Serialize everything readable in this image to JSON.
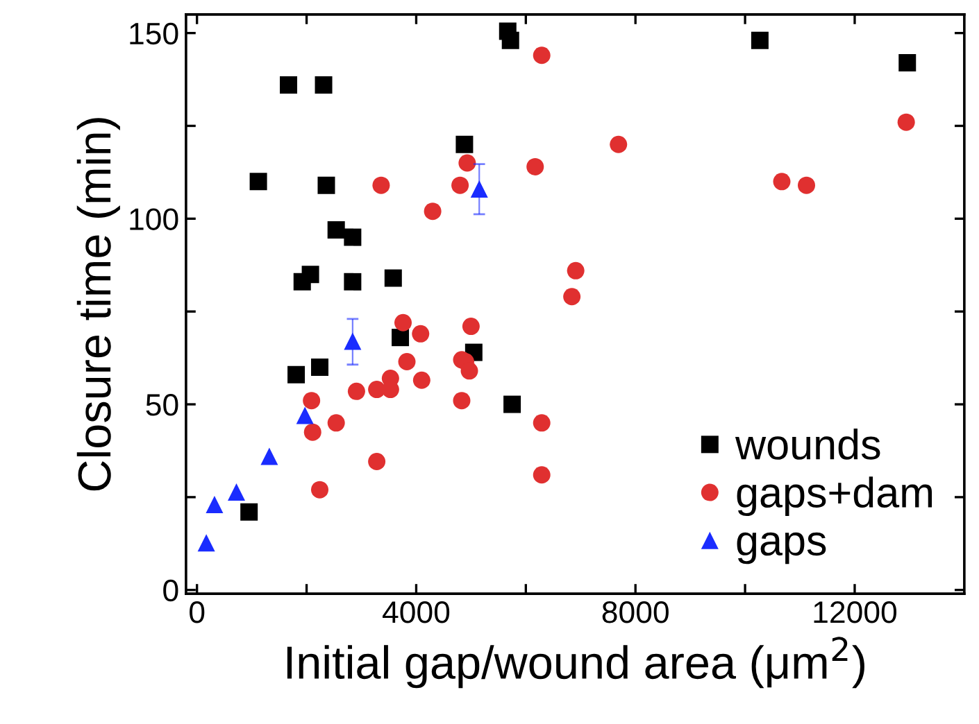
{
  "chart_data": {
    "type": "scatter",
    "xlabel": "Initial gap/wound area (μm$^{2}$)",
    "ylabel": "Closure time (min)",
    "xlim": [
      -200,
      14000
    ],
    "ylim": [
      -1,
      155
    ],
    "xticks": [
      0,
      {
        "value": 2000,
        "label": null
      },
      4000,
      {
        "value": 6000,
        "label": null
      },
      8000,
      {
        "value": 10000,
        "label": null
      },
      12000
    ],
    "yticks": [
      0,
      {
        "value": 25,
        "label": null
      },
      50,
      {
        "value": 75,
        "label": null
      },
      100,
      {
        "value": 125,
        "label": null
      },
      150
    ],
    "legend": "bottom right",
    "grid": false,
    "series": [
      {
        "name": "wounds",
        "color": "#000000",
        "marker": "square",
        "x": [
          5670,
          5720,
          1670,
          2310,
          4880,
          1120,
          2360,
          2540,
          2840,
          1920,
          2070,
          2840,
          3580,
          10270,
          12960,
          3710,
          5050,
          1810,
          2240,
          5750,
          950
        ],
        "values": [
          150.5,
          148,
          136,
          136,
          120,
          110,
          109,
          97,
          95,
          83,
          85,
          83,
          84,
          148,
          142,
          68,
          64,
          58,
          60,
          50,
          21
        ]
      },
      {
        "name": "gaps+dam",
        "color": "#e03030",
        "marker": "circle",
        "x": [
          6290,
          4930,
          6170,
          3360,
          4800,
          4300,
          7690,
          10670,
          11120,
          12940,
          6910,
          6840,
          3760,
          4080,
          5000,
          3830,
          4830,
          4900,
          4970,
          3530,
          3530,
          3280,
          2910,
          4100,
          2090,
          4830,
          2540,
          2110,
          6290,
          3280,
          6290,
          2240
        ],
        "values": [
          144,
          115,
          114,
          109,
          109,
          102,
          120,
          110,
          109,
          126,
          86,
          79,
          72,
          69,
          71,
          61.5,
          62,
          61.5,
          59,
          57,
          54,
          54,
          53.5,
          56.5,
          51,
          51,
          45,
          42.5,
          45,
          34.6,
          31,
          27
        ]
      },
      {
        "name": "gaps",
        "color": "#1a2cff",
        "marker": "triangle",
        "x": [
          5150,
          2840,
          1970,
          1320,
          720,
          320,
          170
        ],
        "values": [
          108,
          67,
          47,
          36,
          26.4,
          23,
          12.7
        ],
        "errors": [
          [
            101.2,
            114.7
          ],
          [
            60.7,
            73
          ],
          null,
          null,
          null,
          null,
          null
        ]
      }
    ]
  }
}
